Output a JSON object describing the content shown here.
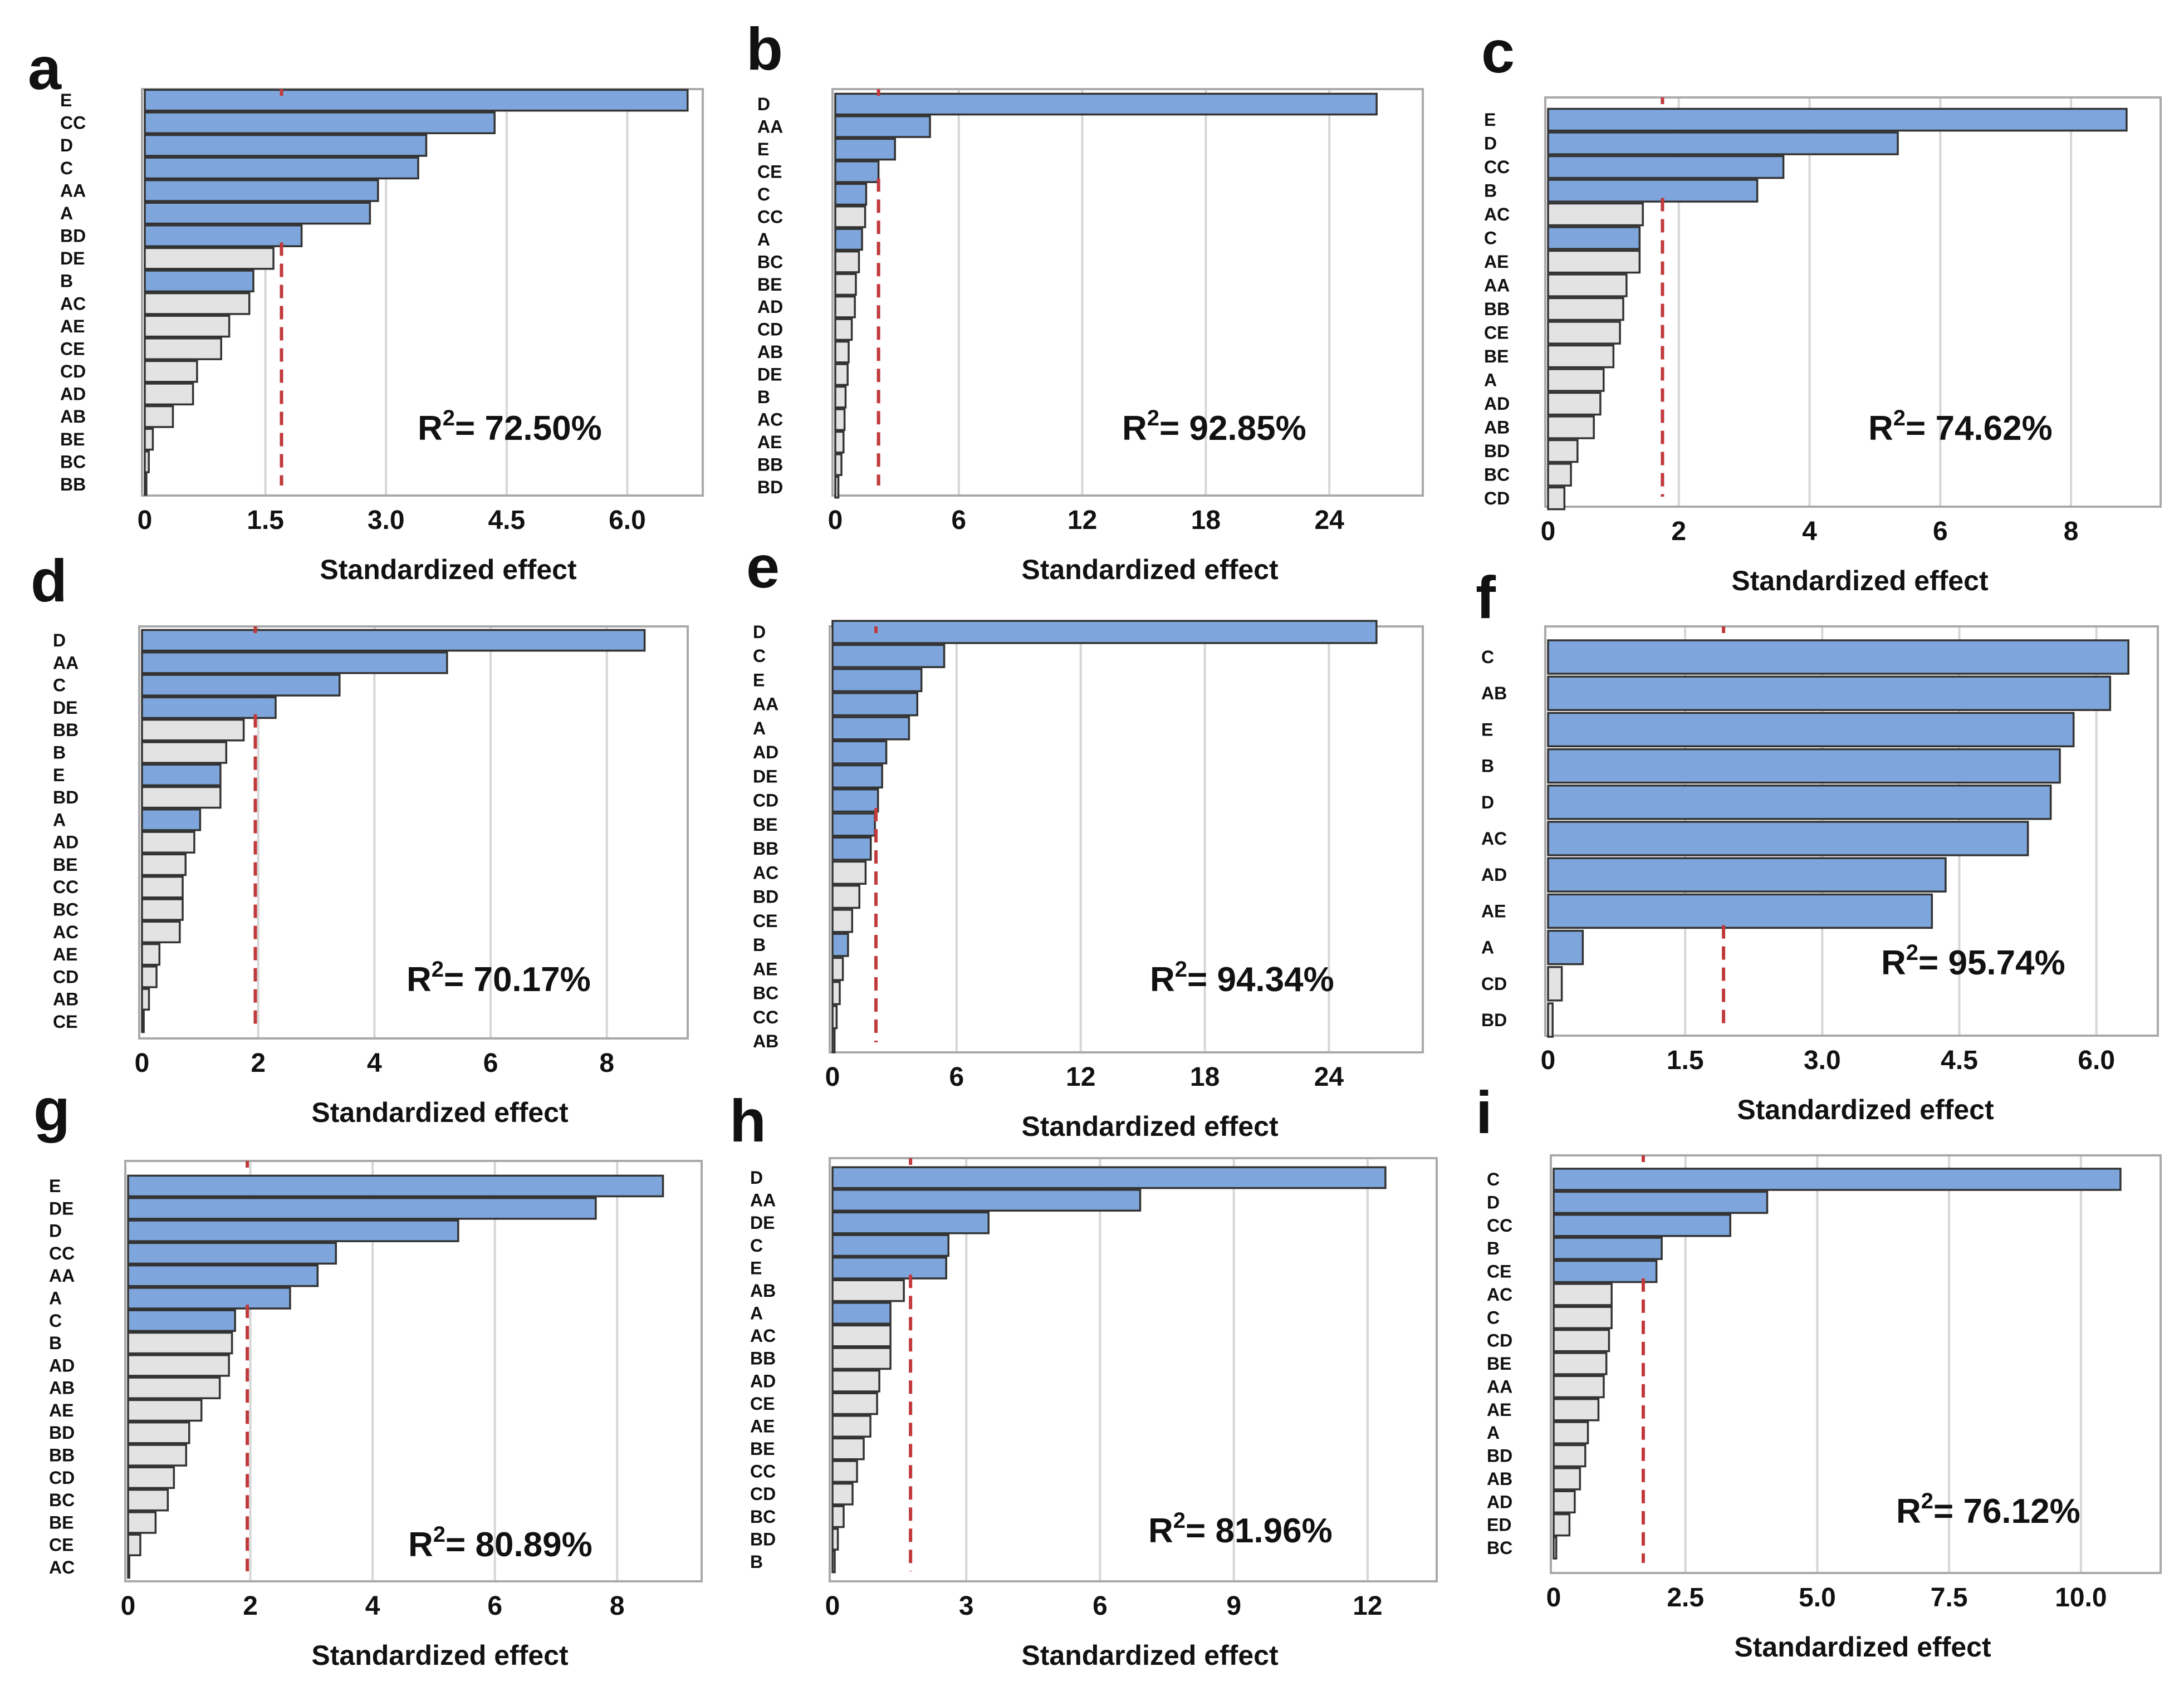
{
  "colors": {
    "significant": "#7ea6dc",
    "nonsignificant": "#e3e3e3",
    "bar_stroke": "#333333",
    "threshold": "#c0393b",
    "frame": "#a9a9a9",
    "grid": "#d6d6d6"
  },
  "chart_data": [
    {
      "letter": "a",
      "type": "bar",
      "orientation": "horizontal",
      "xlabel": "Standardized effect",
      "r2_label": "= 72.50%",
      "xmin": 0,
      "xmax": 6.8,
      "ticks": [
        0,
        1.5,
        3.0,
        4.5,
        6.0
      ],
      "tick_labels": [
        "0",
        "1.5",
        "3.0",
        "4.5",
        "6.0"
      ],
      "threshold": 1.7,
      "categories": [
        "E",
        "CC",
        "D",
        "C",
        "AA",
        "A",
        "BD",
        "DE",
        "B",
        "AC",
        "AE",
        "CE",
        "CD",
        "AD",
        "AB",
        "BE",
        "BC",
        "BB"
      ],
      "values": [
        6.75,
        4.35,
        3.5,
        3.4,
        2.9,
        2.8,
        1.95,
        1.6,
        1.35,
        1.3,
        1.05,
        0.95,
        0.65,
        0.6,
        0.35,
        0.1,
        0.05,
        0.02
      ],
      "significant": [
        true,
        true,
        true,
        true,
        true,
        true,
        true,
        false,
        true,
        false,
        false,
        false,
        false,
        false,
        false,
        false,
        false,
        false
      ]
    },
    {
      "letter": "b",
      "type": "bar",
      "orientation": "horizontal",
      "xlabel": "Standardized effect",
      "r2_label": "= 92.85%",
      "xmin": 0,
      "xmax": 28,
      "ticks": [
        0,
        6,
        12,
        18,
        24
      ],
      "tick_labels": [
        "0",
        "6",
        "12",
        "18",
        "24"
      ],
      "threshold": 2.1,
      "categories": [
        "D",
        "AA",
        "E",
        "CE",
        "C",
        "CC",
        "A",
        "BC",
        "BE",
        "AD",
        "CD",
        "AB",
        "DE",
        "B",
        "AC",
        "AE",
        "BB",
        "BD"
      ],
      "values": [
        26.3,
        4.6,
        2.9,
        2.1,
        1.5,
        1.45,
        1.3,
        1.15,
        1.0,
        0.95,
        0.8,
        0.65,
        0.6,
        0.5,
        0.45,
        0.4,
        0.3,
        0.15
      ],
      "significant": [
        true,
        true,
        true,
        true,
        true,
        false,
        true,
        false,
        false,
        false,
        false,
        false,
        false,
        false,
        false,
        false,
        false,
        false
      ]
    },
    {
      "letter": "c",
      "type": "bar",
      "orientation": "horizontal",
      "xlabel": "Standardized effect",
      "r2_label": "= 74.62%",
      "xmin": 0,
      "xmax": 9.2,
      "ticks": [
        0,
        2,
        4,
        6,
        8
      ],
      "tick_labels": [
        "0",
        "2",
        "4",
        "6",
        "8"
      ],
      "threshold": 1.75,
      "categories": [
        "E",
        "D",
        "CC",
        "B",
        "AC",
        "C",
        "AE",
        "AA",
        "BB",
        "CE",
        "BE",
        "A",
        "AD",
        "AB",
        "BD",
        "BC",
        "CD"
      ],
      "values": [
        8.85,
        5.35,
        3.6,
        3.2,
        1.45,
        1.4,
        1.4,
        1.2,
        1.15,
        1.1,
        1.0,
        0.85,
        0.8,
        0.7,
        0.45,
        0.35,
        0.25
      ],
      "significant": [
        true,
        true,
        true,
        true,
        false,
        true,
        false,
        false,
        false,
        false,
        false,
        false,
        false,
        false,
        false,
        false,
        false
      ]
    },
    {
      "letter": "d",
      "type": "bar",
      "orientation": "horizontal",
      "xlabel": "Standardized effect",
      "r2_label": "= 70.17%",
      "xmin": 0,
      "xmax": 9.2,
      "ticks": [
        0,
        2,
        4,
        6,
        8
      ],
      "tick_labels": [
        "0",
        "2",
        "4",
        "6",
        "8"
      ],
      "threshold": 1.95,
      "categories": [
        "D",
        "AA",
        "C",
        "DE",
        "BB",
        "B",
        "E",
        "BD",
        "A",
        "AD",
        "BE",
        "CC",
        "BC",
        "AC",
        "AE",
        "CD",
        "AB",
        "CE"
      ],
      "values": [
        8.65,
        5.25,
        3.4,
        2.3,
        1.75,
        1.45,
        1.35,
        1.35,
        1.0,
        0.9,
        0.75,
        0.7,
        0.7,
        0.65,
        0.3,
        0.25,
        0.12,
        0.03
      ],
      "significant": [
        true,
        true,
        true,
        true,
        false,
        false,
        true,
        false,
        true,
        false,
        false,
        false,
        false,
        false,
        false,
        false,
        false,
        false
      ]
    },
    {
      "letter": "e",
      "type": "bar",
      "orientation": "horizontal",
      "xlabel": "Standardized effect",
      "r2_label": "= 94.34%",
      "xmin": 0,
      "xmax": 28,
      "ticks": [
        0,
        6,
        12,
        18,
        24
      ],
      "tick_labels": [
        "0",
        "6",
        "12",
        "18",
        "24"
      ],
      "threshold": 2.1,
      "categories": [
        "D",
        "C",
        "E",
        "AA",
        "A",
        "AD",
        "DE",
        "CD",
        "BE",
        "BB",
        "AC",
        "BD",
        "CE",
        "B",
        "AE",
        "BC",
        "CC",
        "AB"
      ],
      "values": [
        26.3,
        5.4,
        4.3,
        4.1,
        3.7,
        2.6,
        2.4,
        2.2,
        2.05,
        1.85,
        1.6,
        1.3,
        0.95,
        0.75,
        0.5,
        0.35,
        0.2,
        0.1
      ],
      "significant": [
        true,
        true,
        true,
        true,
        true,
        true,
        true,
        true,
        true,
        true,
        false,
        false,
        false,
        true,
        false,
        false,
        false,
        false
      ]
    },
    {
      "letter": "f",
      "type": "bar",
      "orientation": "horizontal",
      "xlabel": "Standardized effect",
      "r2_label": "= 95.74%",
      "xmin": 0,
      "xmax": 6.55,
      "ticks": [
        0,
        1.5,
        3.0,
        4.5,
        6.0
      ],
      "tick_labels": [
        "0",
        "1.5",
        "3.0",
        "4.5",
        "6.0"
      ],
      "threshold": 1.92,
      "categories": [
        "C",
        "AB",
        "E",
        "B",
        "D",
        "AC",
        "AD",
        "AE",
        "A",
        "CD",
        "BD"
      ],
      "values": [
        6.35,
        6.15,
        5.75,
        5.6,
        5.5,
        5.25,
        4.35,
        4.2,
        0.38,
        0.15,
        0.05
      ],
      "significant": [
        true,
        true,
        true,
        true,
        true,
        true,
        true,
        true,
        true,
        false,
        false
      ]
    },
    {
      "letter": "g",
      "type": "bar",
      "orientation": "horizontal",
      "xlabel": "Standardized effect",
      "r2_label": "= 80.89%",
      "xmin": 0,
      "xmax": 9.2,
      "ticks": [
        0,
        2,
        4,
        6,
        8
      ],
      "tick_labels": [
        "0",
        "2",
        "4",
        "6",
        "8"
      ],
      "threshold": 1.95,
      "categories": [
        "E",
        "DE",
        "D",
        "CC",
        "AA",
        "A",
        "C",
        "B",
        "AD",
        "AB",
        "AE",
        "BD",
        "BB",
        "CD",
        "BC",
        "BE",
        "CE",
        "AC"
      ],
      "values": [
        8.75,
        7.65,
        5.4,
        3.4,
        3.1,
        2.65,
        1.75,
        1.7,
        1.65,
        1.5,
        1.2,
        1.0,
        0.95,
        0.75,
        0.65,
        0.45,
        0.2,
        0.02
      ],
      "significant": [
        true,
        true,
        true,
        true,
        true,
        true,
        true,
        false,
        false,
        false,
        false,
        false,
        false,
        false,
        false,
        false,
        false,
        false
      ]
    },
    {
      "letter": "h",
      "type": "bar",
      "orientation": "horizontal",
      "xlabel": "Standardized effect",
      "r2_label": "= 81.96%",
      "xmin": 0,
      "xmax": 13.3,
      "ticks": [
        0,
        3,
        6,
        9,
        12
      ],
      "tick_labels": [
        "0",
        "3",
        "6",
        "9",
        "12"
      ],
      "threshold": 1.75,
      "categories": [
        "D",
        "AA",
        "DE",
        "C",
        "E",
        "AB",
        "A",
        "AC",
        "BB",
        "AD",
        "CE",
        "AE",
        "BE",
        "CC",
        "CD",
        "BC",
        "BD",
        "B"
      ],
      "values": [
        12.4,
        6.9,
        3.5,
        2.6,
        2.55,
        1.6,
        1.3,
        1.3,
        1.3,
        1.05,
        1.0,
        0.85,
        0.7,
        0.55,
        0.45,
        0.25,
        0.12,
        0.05
      ],
      "significant": [
        true,
        true,
        true,
        true,
        true,
        false,
        true,
        false,
        false,
        false,
        false,
        false,
        false,
        false,
        false,
        false,
        false,
        false
      ]
    },
    {
      "letter": "i",
      "type": "bar",
      "orientation": "horizontal",
      "xlabel": "Standardized effect",
      "r2_label": "= 76.12%",
      "xmin": 0,
      "xmax": 11.3,
      "ticks": [
        0,
        2.5,
        5.0,
        7.5,
        10.0
      ],
      "tick_labels": [
        "0",
        "2.5",
        "5.0",
        "7.5",
        "10.0"
      ],
      "threshold": 1.7,
      "categories": [
        "C",
        "D",
        "CC",
        "B",
        "CE",
        "AC",
        "C",
        "CD",
        "BE",
        "AA",
        "AE",
        "A",
        "BD",
        "AB",
        "AD",
        "ED",
        "BC"
      ],
      "values": [
        10.75,
        4.05,
        3.35,
        2.05,
        1.95,
        1.1,
        1.1,
        1.05,
        1.0,
        0.95,
        0.85,
        0.65,
        0.6,
        0.5,
        0.4,
        0.3,
        0.05
      ],
      "significant": [
        true,
        true,
        true,
        true,
        true,
        false,
        false,
        false,
        false,
        false,
        false,
        false,
        false,
        false,
        false,
        false,
        false
      ]
    }
  ]
}
